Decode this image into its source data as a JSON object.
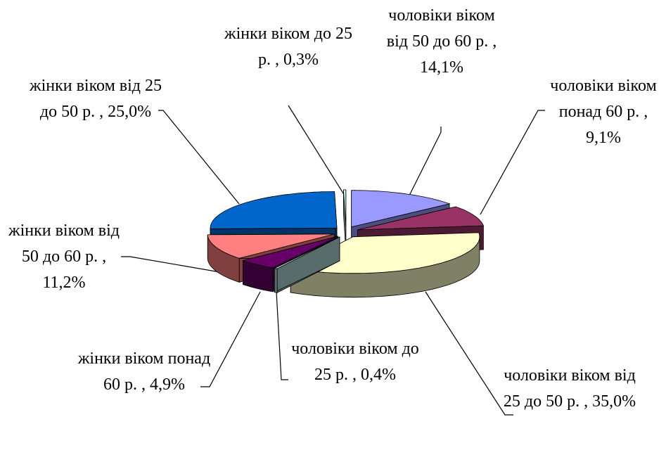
{
  "chart_data": {
    "type": "pie3d",
    "categories": [
      "чоловіки віком від 50 до 60 р. ,",
      "чоловіки віком понад 60 р. ,",
      "чоловіки віком від 25 до 50 р. ,",
      "чоловіки віком до 25 р. ,",
      "жінки віком понад 60 р. ,",
      "жінки віком від 50 до 60 р. ,",
      "жінки віком від 25 до 50 р. ,",
      "жінки віком до 25 р. ,"
    ],
    "values": [
      14.1,
      9.1,
      35.0,
      0.4,
      4.9,
      11.2,
      25.0,
      0.3
    ],
    "value_labels": [
      "14,1%",
      "9,1%",
      "35,0%",
      "0,4%",
      "4,9%",
      "11,2%",
      "25,0%",
      "0,3%"
    ],
    "colors": [
      "#9999ff",
      "#993366",
      "#ffffcc",
      "#b0d8d8",
      "#660066",
      "#ff8080",
      "#0066cc",
      "#ccffff"
    ]
  }
}
